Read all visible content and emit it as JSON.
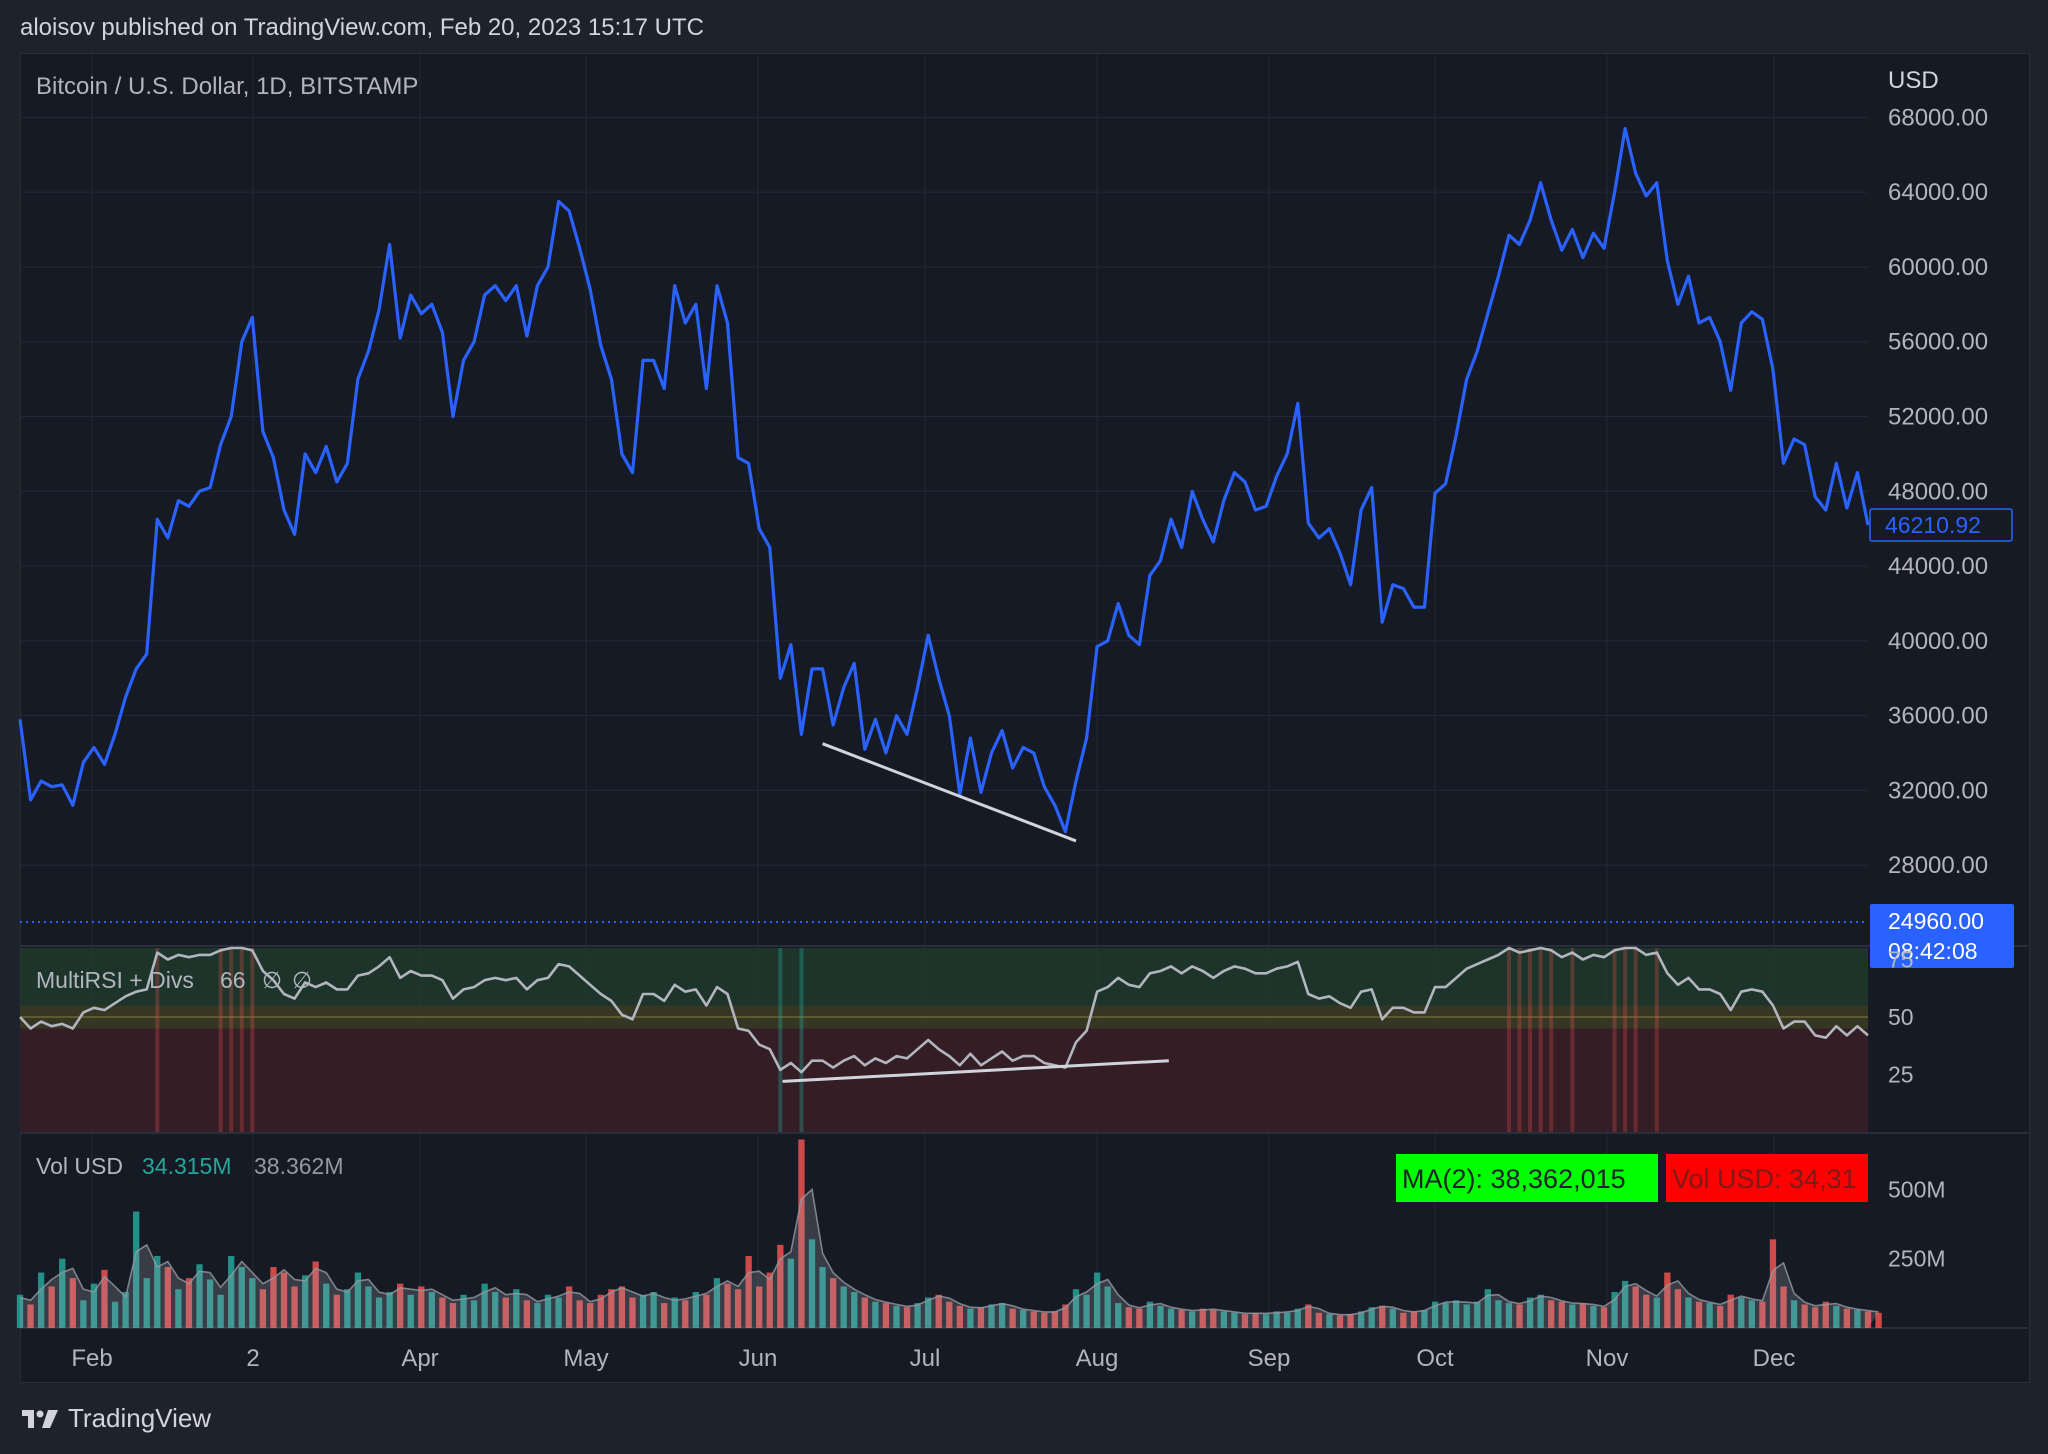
{
  "header": {
    "published_line": "aloisov published on TradingView.com, Feb 20, 2023 15:17 UTC"
  },
  "footer": {
    "brand": "TradingView",
    "logo_icon": "tradingview-logo-icon"
  },
  "colors": {
    "background": "#161a25",
    "price_line": "#2962ff",
    "rsi_line": "#b2b5be",
    "overbought_zone": "#1f3a2c",
    "oversold_zone": "#3a1f24",
    "volume_up": "#26a69a",
    "volume_down": "#ef5350",
    "last_price_tag": "#2962ff",
    "ma_badge": "#00ff00",
    "vol_badge": "#ff0000"
  },
  "chart_data": [
    {
      "type": "line",
      "title": "Bitcoin / U.S. Dollar, 1D, BITSTAMP",
      "currency": "USD",
      "ylim": [
        24000,
        70000
      ],
      "y_ticks": [
        "68000.00",
        "64000.00",
        "60000.00",
        "56000.00",
        "52000.00",
        "48000.00",
        "44000.00",
        "40000.00",
        "36000.00",
        "32000.00",
        "28000.00"
      ],
      "x_ticks": [
        "Feb",
        "2",
        "Apr",
        "May",
        "Jun",
        "Jul",
        "Aug",
        "Sep",
        "Oct",
        "Nov",
        "Dec"
      ],
      "series": [
        {
          "values": [
            35800,
            31500,
            32500,
            32200,
            32300,
            31200,
            33500,
            34300,
            33400,
            35000,
            37000,
            38500,
            39300,
            46500,
            45500,
            47500,
            47200,
            48000,
            48200,
            50500,
            52000,
            56000,
            57300,
            51200,
            49800,
            47000,
            45700,
            50000,
            49000,
            50400,
            48500,
            49500,
            54000,
            55500,
            57700,
            61200,
            56200,
            58500,
            57500,
            58000,
            56500,
            52000,
            55000,
            56000,
            58500,
            59000,
            58200,
            59000,
            56300,
            59000,
            60000,
            63500,
            63000,
            61000,
            58800,
            55800,
            54000,
            50000,
            49000,
            55000,
            55000,
            53500,
            59000,
            57000,
            58000,
            53500,
            59000,
            57000,
            49800,
            49500,
            46000,
            45000,
            38000,
            39800,
            35000,
            38500,
            38500,
            35500,
            37500,
            38800,
            34200,
            35800,
            34000,
            36000,
            35000,
            37500,
            40300,
            38000,
            36000,
            31800,
            34800,
            31900,
            34000,
            35200,
            33200,
            34300,
            34000,
            32200,
            31200,
            29800,
            32500,
            34800,
            39700,
            40000,
            42000,
            40300,
            39800,
            43500,
            44300,
            46500,
            45000,
            48000,
            46500,
            45300,
            47500,
            49000,
            48500,
            47000,
            47200,
            48800,
            50000,
            52700,
            46300,
            45500,
            46000,
            44700,
            43000,
            47000,
            48200,
            41000,
            43000,
            42800,
            41800,
            41800,
            47900,
            48400,
            51000,
            54000,
            55500,
            57500,
            59500,
            61700,
            61200,
            62500,
            64500,
            62500,
            60900,
            62000,
            60500,
            61800,
            61000,
            64000,
            67400,
            65000,
            63800,
            64500,
            60300,
            58000,
            59500,
            57000,
            57300,
            56000,
            53400,
            57000,
            57600,
            57200,
            54500,
            49500,
            50800,
            50500,
            47700,
            47000,
            49500,
            47100,
            49000,
            46200
          ]
        }
      ],
      "last_value_label": "46210.92",
      "current_price_label": "24960.00",
      "countdown_label": "08:42:08",
      "current_price": 24960,
      "divergence_line": {
        "from": {
          "index": 76,
          "value": 34500
        },
        "to": {
          "index": 100,
          "value": 29300
        }
      }
    },
    {
      "type": "line",
      "indicator": "MultiRSI + Divs",
      "label_values": [
        "66",
        "∅",
        "∅"
      ],
      "ylim": [
        0,
        80
      ],
      "y_ticks": [
        "75",
        "50",
        "25"
      ],
      "levels": {
        "overbought": 55,
        "mid": 50,
        "oversold": 45
      },
      "values": [
        50,
        45,
        48,
        46,
        47,
        45,
        52,
        54,
        53,
        56,
        59,
        61,
        62,
        78,
        75,
        77,
        76,
        77,
        77,
        79,
        80,
        80,
        79,
        70,
        66,
        60,
        58,
        65,
        63,
        65,
        62,
        62,
        68,
        69,
        72,
        76,
        67,
        70,
        68,
        68,
        66,
        58,
        62,
        63,
        66,
        67,
        66,
        67,
        62,
        66,
        67,
        73,
        72,
        68,
        64,
        60,
        57,
        51,
        49,
        60,
        60,
        57,
        64,
        61,
        62,
        55,
        63,
        60,
        45,
        44,
        38,
        36,
        27,
        30,
        26,
        31,
        31,
        28,
        31,
        33,
        29,
        32,
        30,
        33,
        32,
        36,
        40,
        36,
        33,
        29,
        34,
        29,
        32,
        35,
        31,
        33,
        33,
        30,
        29,
        28,
        39,
        44,
        61,
        63,
        67,
        64,
        63,
        69,
        70,
        72,
        69,
        72,
        70,
        67,
        70,
        72,
        71,
        69,
        69,
        71,
        72,
        74,
        60,
        58,
        59,
        56,
        54,
        61,
        62,
        49,
        54,
        54,
        52,
        52,
        63,
        63,
        67,
        71,
        73,
        75,
        77,
        80,
        78,
        79,
        82,
        79,
        76,
        78,
        75,
        77,
        76,
        79,
        84,
        80,
        77,
        78,
        69,
        64,
        67,
        62,
        62,
        60,
        53,
        61,
        62,
        61,
        55,
        45,
        48,
        48,
        42,
        41,
        46,
        42,
        46,
        42
      ],
      "divergence_line": {
        "from": {
          "index": 76,
          "value": 22
        },
        "to": {
          "index": 105,
          "value": 31
        }
      }
    },
    {
      "type": "bar",
      "indicator": "Vol USD",
      "volume_value": "34.315M",
      "ma_value": "38.362M",
      "ma_badge": "MA(2): 38,362,015",
      "vol_badge": "Vol USD: 34,31",
      "ylim": [
        0,
        700000000
      ],
      "y_ticks": [
        "500M",
        "250M"
      ],
      "values": [
        120000000,
        85000000,
        200000000,
        150000000,
        250000000,
        180000000,
        100000000,
        160000000,
        210000000,
        95000000,
        130000000,
        420000000,
        180000000,
        260000000,
        220000000,
        140000000,
        180000000,
        230000000,
        175000000,
        120000000,
        260000000,
        220000000,
        180000000,
        140000000,
        220000000,
        200000000,
        150000000,
        190000000,
        240000000,
        160000000,
        120000000,
        140000000,
        200000000,
        150000000,
        110000000,
        130000000,
        160000000,
        120000000,
        150000000,
        130000000,
        110000000,
        90000000,
        120000000,
        100000000,
        160000000,
        130000000,
        110000000,
        140000000,
        100000000,
        90000000,
        120000000,
        110000000,
        150000000,
        100000000,
        90000000,
        120000000,
        140000000,
        150000000,
        110000000,
        120000000,
        130000000,
        90000000,
        110000000,
        100000000,
        130000000,
        120000000,
        180000000,
        160000000,
        140000000,
        260000000,
        150000000,
        200000000,
        300000000,
        250000000,
        680000000,
        320000000,
        220000000,
        180000000,
        150000000,
        130000000,
        110000000,
        95000000,
        90000000,
        80000000,
        75000000,
        90000000,
        110000000,
        120000000,
        95000000,
        80000000,
        70000000,
        75000000,
        85000000,
        90000000,
        70000000,
        65000000,
        60000000,
        55000000,
        60000000,
        85000000,
        140000000,
        120000000,
        200000000,
        150000000,
        90000000,
        75000000,
        70000000,
        95000000,
        80000000,
        70000000,
        65000000,
        60000000,
        70000000,
        65000000,
        60000000,
        55000000,
        50000000,
        55000000,
        50000000,
        60000000,
        55000000,
        70000000,
        85000000,
        55000000,
        50000000,
        45000000,
        50000000,
        60000000,
        75000000,
        80000000,
        70000000,
        55000000,
        60000000,
        65000000,
        95000000,
        90000000,
        100000000,
        85000000,
        95000000,
        140000000,
        100000000,
        90000000,
        85000000,
        110000000,
        120000000,
        100000000,
        95000000,
        85000000,
        90000000,
        80000000,
        75000000,
        130000000,
        170000000,
        150000000,
        120000000,
        110000000,
        200000000,
        140000000,
        110000000,
        95000000,
        90000000,
        80000000,
        120000000,
        110000000,
        100000000,
        95000000,
        320000000,
        150000000,
        100000000,
        85000000,
        75000000,
        95000000,
        80000000,
        70000000,
        65000000,
        60000000,
        55000000
      ],
      "ma_values": [
        110000000,
        100000000,
        140000000,
        175000000,
        200000000,
        215000000,
        140000000,
        130000000,
        185000000,
        150000000,
        112000000,
        275000000,
        300000000,
        220000000,
        240000000,
        180000000,
        160000000,
        205000000,
        200000000,
        147000000,
        190000000,
        240000000,
        200000000,
        160000000,
        180000000,
        210000000,
        175000000,
        170000000,
        215000000,
        200000000,
        140000000,
        130000000,
        170000000,
        175000000,
        130000000,
        120000000,
        145000000,
        140000000,
        135000000,
        140000000,
        120000000,
        100000000,
        105000000,
        110000000,
        130000000,
        145000000,
        120000000,
        125000000,
        120000000,
        95000000,
        105000000,
        115000000,
        130000000,
        125000000,
        95000000,
        105000000,
        130000000,
        145000000,
        130000000,
        115000000,
        125000000,
        110000000,
        100000000,
        105000000,
        115000000,
        125000000,
        150000000,
        170000000,
        150000000,
        200000000,
        205000000,
        175000000,
        250000000,
        275000000,
        465000000,
        500000000,
        270000000,
        200000000,
        165000000,
        140000000,
        120000000,
        103000000,
        93000000,
        85000000,
        78000000,
        83000000,
        100000000,
        115000000,
        108000000,
        88000000,
        75000000,
        73000000,
        80000000,
        88000000,
        80000000,
        68000000,
        63000000,
        58000000,
        58000000,
        73000000,
        113000000,
        130000000,
        160000000,
        175000000,
        120000000,
        83000000,
        73000000,
        83000000,
        88000000,
        75000000,
        68000000,
        63000000,
        65000000,
        68000000,
        63000000,
        58000000,
        53000000,
        53000000,
        53000000,
        55000000,
        58000000,
        63000000,
        78000000,
        70000000,
        53000000,
        48000000,
        48000000,
        55000000,
        68000000,
        78000000,
        75000000,
        63000000,
        58000000,
        63000000,
        80000000,
        93000000,
        95000000,
        93000000,
        90000000,
        118000000,
        120000000,
        95000000,
        88000000,
        98000000,
        115000000,
        110000000,
        98000000,
        90000000,
        88000000,
        85000000,
        78000000,
        103000000,
        150000000,
        160000000,
        135000000,
        115000000,
        155000000,
        170000000,
        125000000,
        103000000,
        93000000,
        85000000,
        100000000,
        115000000,
        105000000,
        98000000,
        208000000,
        235000000,
        125000000,
        93000000,
        80000000,
        85000000,
        88000000,
        75000000,
        68000000,
        63000000,
        58000000
      ]
    }
  ]
}
